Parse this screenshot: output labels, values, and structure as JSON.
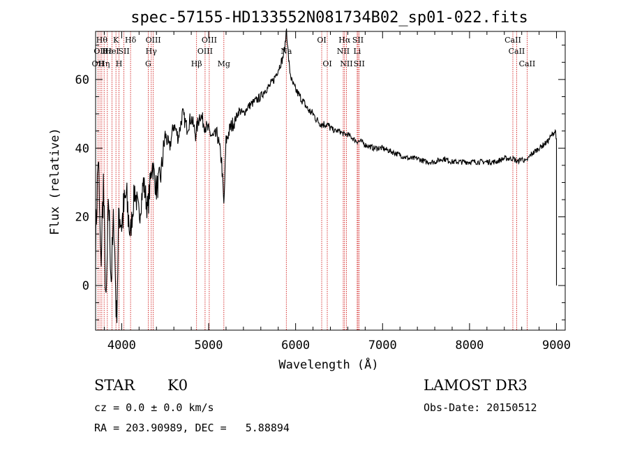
{
  "chart_data": {
    "type": "line",
    "title": "spec-57155-HD133552N081734B02_sp01-022.fits",
    "xlabel": "Wavelength (Å)",
    "ylabel": "Flux (relative)",
    "xlim": [
      3700,
      9100
    ],
    "ylim": [
      -13,
      74
    ],
    "xticks": [
      4000,
      5000,
      6000,
      7000,
      8000,
      9000
    ],
    "yticks": [
      0,
      20,
      40,
      60
    ],
    "series": [
      {
        "name": "flux",
        "x": [
          3700,
          3730,
          3760,
          3790,
          3820,
          3850,
          3880,
          3910,
          3940,
          3970,
          4000,
          4050,
          4100,
          4150,
          4200,
          4250,
          4300,
          4350,
          4400,
          4450,
          4500,
          4550,
          4600,
          4650,
          4700,
          4750,
          4800,
          4850,
          4900,
          4950,
          5000,
          5050,
          5100,
          5150,
          5175,
          5200,
          5250,
          5300,
          5350,
          5400,
          5450,
          5500,
          5550,
          5600,
          5650,
          5700,
          5750,
          5800,
          5850,
          5880,
          5895,
          5910,
          5930,
          5960,
          6000,
          6050,
          6100,
          6150,
          6200,
          6250,
          6300,
          6350,
          6400,
          6450,
          6500,
          6560,
          6600,
          6650,
          6700,
          6750,
          6800,
          6900,
          7000,
          7100,
          7200,
          7300,
          7400,
          7500,
          7600,
          7700,
          7800,
          7900,
          8000,
          8100,
          8200,
          8300,
          8400,
          8500,
          8550,
          8600,
          8650,
          8700,
          8750,
          8800,
          8850,
          8900,
          8950,
          8990,
          9000,
          9000
        ],
        "values": [
          12,
          38,
          5,
          30,
          -8,
          25,
          2,
          20,
          -10,
          22,
          18,
          26,
          15,
          28,
          20,
          30,
          22,
          36,
          28,
          32,
          44,
          40,
          47,
          43,
          50,
          46,
          49,
          44,
          50,
          47,
          45,
          43,
          44,
          36,
          23,
          42,
          46,
          48,
          51,
          50,
          52,
          53,
          54,
          55,
          57,
          58,
          60,
          63,
          66,
          70,
          75,
          69,
          63,
          59,
          57,
          55,
          53,
          51,
          50,
          48,
          47,
          47,
          46,
          45,
          45,
          44,
          44,
          43,
          42,
          42,
          41,
          40,
          40,
          39,
          38,
          37,
          37,
          36,
          36,
          37,
          36,
          36,
          36,
          36,
          36,
          36,
          37,
          37,
          36,
          37,
          36,
          38,
          39,
          40,
          41,
          42,
          44,
          45,
          42,
          0
        ]
      }
    ],
    "spectral_lines": [
      {
        "wavelength": 3727,
        "label": "OII",
        "row": 2
      },
      {
        "wavelength": 3750,
        "label": "OII",
        "row": 1
      },
      {
        "wavelength": 3771,
        "label": "Hθ",
        "row": 0
      },
      {
        "wavelength": 3798,
        "label": "Hη",
        "row": 2
      },
      {
        "wavelength": 3835,
        "label": "Hε",
        "row": 1
      },
      {
        "wavelength": 3889,
        "label": "HeI",
        "row": 1
      },
      {
        "wavelength": 3934,
        "label": "K",
        "row": 0
      },
      {
        "wavelength": 3969,
        "label": "H",
        "row": 2
      },
      {
        "wavelength": 4026,
        "label": "SII",
        "row": 1
      },
      {
        "wavelength": 4102,
        "label": "Hδ",
        "row": 0
      },
      {
        "wavelength": 4305,
        "label": "G",
        "row": 2
      },
      {
        "wavelength": 4340,
        "label": "Hγ",
        "row": 1
      },
      {
        "wavelength": 4363,
        "label": "OIII",
        "row": 0
      },
      {
        "wavelength": 4861,
        "label": "Hβ",
        "row": 2
      },
      {
        "wavelength": 4959,
        "label": "OIII",
        "row": 1
      },
      {
        "wavelength": 5007,
        "label": "OIII",
        "row": 0
      },
      {
        "wavelength": 5175,
        "label": "Mg",
        "row": 2
      },
      {
        "wavelength": 5893,
        "label": "Na",
        "row": 1
      },
      {
        "wavelength": 6300,
        "label": "OI",
        "row": 0
      },
      {
        "wavelength": 6364,
        "label": "OI",
        "row": 2
      },
      {
        "wavelength": 6548,
        "label": "NII",
        "row": 1
      },
      {
        "wavelength": 6563,
        "label": "Hα",
        "row": 0
      },
      {
        "wavelength": 6584,
        "label": "NII",
        "row": 2
      },
      {
        "wavelength": 6708,
        "label": "Li",
        "row": 1
      },
      {
        "wavelength": 6717,
        "label": "SII",
        "row": 0
      },
      {
        "wavelength": 6731,
        "label": "SII",
        "row": 2
      },
      {
        "wavelength": 8498,
        "label": "CaII",
        "row": 0
      },
      {
        "wavelength": 8542,
        "label": "CaII",
        "row": 1
      },
      {
        "wavelength": 8662,
        "label": "CaII",
        "row": 2
      }
    ]
  },
  "info": {
    "object_class": "STAR",
    "subclass": "K0",
    "survey": "LAMOST DR3",
    "redshift_line": "cz = 0.0 ± 0.0 km/s",
    "obs_date": "Obs-Date: 20150512",
    "coords": "RA = 203.90989, DEC =   5.88894"
  },
  "colors": {
    "line_marker": "#cc0000",
    "spectrum": "#000000",
    "axis": "#000000"
  }
}
